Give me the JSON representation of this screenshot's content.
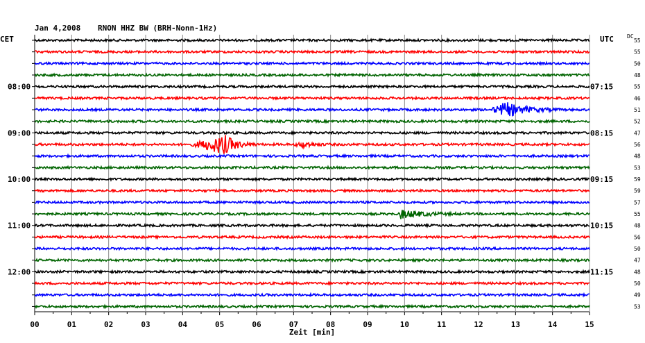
{
  "header": {
    "date": "Jan 4,2008",
    "station": "RNON HHZ BW (BRH-Nonn-1Hz)"
  },
  "left_label": "CET",
  "right_label": "UTC",
  "dc_label": "DC",
  "colors": {
    "black": "#000000",
    "red": "#ff0000",
    "blue": "#0000ff",
    "green": "#006400"
  },
  "chart_data": {
    "type": "line",
    "title": "Jan 4,2008   RNON HHZ BW (BRH-Nonn-1Hz)",
    "xlabel": "Zeit [min]",
    "xlim": [
      0,
      15
    ],
    "x_ticks": [
      "00",
      "01",
      "02",
      "03",
      "04",
      "05",
      "06",
      "07",
      "08",
      "09",
      "10",
      "11",
      "12",
      "13",
      "14",
      "15"
    ],
    "traces": [
      {
        "color": "black",
        "dc": "55"
      },
      {
        "color": "red",
        "dc": "55"
      },
      {
        "color": "blue",
        "dc": "50"
      },
      {
        "color": "green",
        "dc": "48"
      },
      {
        "color": "black",
        "dc": "55",
        "cet": "08:00",
        "utc": "07:15"
      },
      {
        "color": "red",
        "dc": "46"
      },
      {
        "color": "blue",
        "dc": "51",
        "event": {
          "start": 12.3,
          "peak": 12.75,
          "end": 14.2,
          "amp": 10
        }
      },
      {
        "color": "green",
        "dc": "52"
      },
      {
        "color": "black",
        "dc": "47",
        "cet": "09:00",
        "utc": "08:15"
      },
      {
        "color": "red",
        "dc": "56",
        "event": {
          "start": 4.2,
          "peak": 5.15,
          "end": 6.0,
          "amp": 13
        },
        "event2": {
          "start": 7.0,
          "peak": 7.3,
          "end": 8.0,
          "amp": 4
        }
      },
      {
        "color": "blue",
        "dc": "48"
      },
      {
        "color": "green",
        "dc": "53"
      },
      {
        "color": "black",
        "dc": "59",
        "cet": "10:00",
        "utc": "09:15"
      },
      {
        "color": "red",
        "dc": "59"
      },
      {
        "color": "blue",
        "dc": "57"
      },
      {
        "color": "green",
        "dc": "55",
        "event": {
          "start": 9.85,
          "peak": 9.9,
          "end": 11.5,
          "amp": 6
        }
      },
      {
        "color": "black",
        "dc": "48",
        "cet": "11:00",
        "utc": "10:15"
      },
      {
        "color": "red",
        "dc": "56"
      },
      {
        "color": "blue",
        "dc": "50"
      },
      {
        "color": "green",
        "dc": "47"
      },
      {
        "color": "black",
        "dc": "48",
        "cet": "12:00",
        "utc": "11:15"
      },
      {
        "color": "red",
        "dc": "50"
      },
      {
        "color": "blue",
        "dc": "49"
      },
      {
        "color": "green",
        "dc": "53"
      }
    ]
  }
}
